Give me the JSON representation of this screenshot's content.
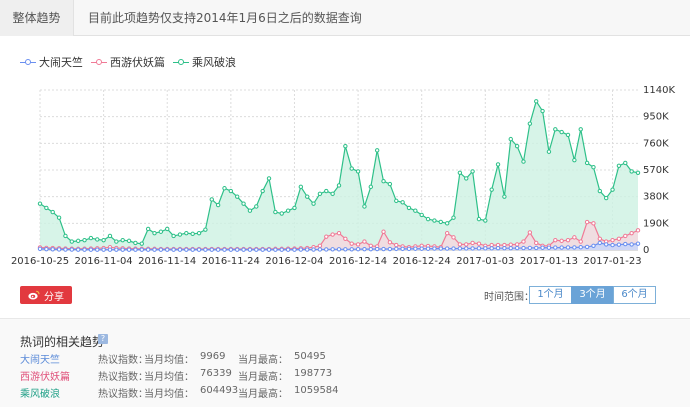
{
  "header": {
    "tab": "整体趋势",
    "notice": "目前此项趋势仅支持2014年1月6日之后的数据查询"
  },
  "colors": {
    "series1": "#6a8ff0",
    "series2": "#f07a96",
    "series3": "#2ec089",
    "area1": "#c7d6fb",
    "area2": "#f6d7de",
    "area3": "#cdf1e2"
  },
  "chart_data": {
    "type": "area",
    "y_axis_side": "right",
    "ylim": [
      0,
      1140000
    ],
    "y_ticks": [
      "0",
      "190K",
      "380K",
      "570K",
      "760K",
      "950K",
      "1140K"
    ],
    "x_ticks": [
      "2016-10-25",
      "2016-11-04",
      "2016-11-14",
      "2016-11-24",
      "2016-12-04",
      "2016-12-14",
      "2016-12-24",
      "2017-01-03",
      "2017-01-13",
      "2017-01-23"
    ],
    "grid": true,
    "legend": "top-left",
    "series": [
      {
        "name": "大闹天竺",
        "values": [
          8000,
          6000,
          5000,
          4000,
          3000,
          3000,
          2500,
          2000,
          2000,
          2000,
          2000,
          2000,
          2000,
          2000,
          2000,
          2000,
          2000,
          2000,
          2000,
          2000,
          2000,
          2000,
          2000,
          2000,
          2000,
          2000,
          2000,
          2000,
          2000,
          2000,
          2000,
          2000,
          2000,
          2000,
          2000,
          2000,
          2000,
          2000,
          2000,
          2000,
          2000,
          3000,
          3000,
          3000,
          4000,
          4000,
          5000,
          5000,
          5000,
          5000,
          6000,
          6000,
          6000,
          7000,
          7000,
          7000,
          8000,
          8000,
          8000,
          9000,
          9000,
          9000,
          10000,
          10000,
          10000,
          10000,
          11000,
          11000,
          11000,
          12000,
          12000,
          12000,
          13000,
          13000,
          13000,
          14000,
          14000,
          15000,
          15000,
          16000,
          16000,
          17000,
          17000,
          18000,
          18000,
          20000,
          22000,
          30000,
          50495,
          40000,
          35000,
          38000,
          42000,
          40000,
          45000
        ]
      },
      {
        "name": "西游伏妖篇",
        "values": [
          18000,
          15000,
          14000,
          12000,
          10000,
          9000,
          8000,
          9000,
          10000,
          12000,
          14000,
          20000,
          14000,
          12000,
          10000,
          9000,
          8000,
          8000,
          8000,
          7000,
          7000,
          7000,
          7000,
          7000,
          7000,
          7000,
          7000,
          7000,
          7000,
          7000,
          7000,
          7000,
          7000,
          7000,
          7000,
          7000,
          7000,
          8000,
          8000,
          9000,
          10000,
          12000,
          14000,
          20000,
          30000,
          95000,
          110000,
          120000,
          80000,
          45000,
          40000,
          60000,
          30000,
          25000,
          130000,
          55000,
          35000,
          25000,
          20000,
          25000,
          30000,
          28000,
          25000,
          20000,
          120000,
          90000,
          40000,
          40000,
          50000,
          45000,
          30000,
          35000,
          35000,
          35000,
          38000,
          40000,
          60000,
          125000,
          50000,
          30000,
          30000,
          70000,
          65000,
          70000,
          90000,
          60000,
          198773,
          190000,
          80000,
          60000,
          70000,
          80000,
          100000,
          120000,
          140000
        ]
      },
      {
        "name": "乘风破浪",
        "values": [
          330000,
          300000,
          270000,
          230000,
          100000,
          60000,
          65000,
          70000,
          85000,
          75000,
          70000,
          100000,
          60000,
          70000,
          65000,
          50000,
          45000,
          150000,
          120000,
          130000,
          150000,
          100000,
          110000,
          120000,
          115000,
          120000,
          145000,
          360000,
          320000,
          440000,
          420000,
          380000,
          330000,
          280000,
          310000,
          420000,
          510000,
          270000,
          260000,
          280000,
          300000,
          450000,
          380000,
          330000,
          400000,
          420000,
          400000,
          460000,
          740000,
          580000,
          560000,
          310000,
          450000,
          710000,
          490000,
          470000,
          350000,
          340000,
          300000,
          280000,
          250000,
          220000,
          210000,
          200000,
          190000,
          230000,
          550000,
          510000,
          560000,
          220000,
          210000,
          430000,
          610000,
          380000,
          790000,
          740000,
          630000,
          900000,
          1059584,
          990000,
          700000,
          860000,
          840000,
          820000,
          640000,
          860000,
          620000,
          590000,
          420000,
          370000,
          430000,
          600000,
          620000,
          560000,
          550000
        ]
      }
    ]
  },
  "controls": {
    "share_label": "分享",
    "range_label": "时间范围：",
    "ranges": [
      "1个月",
      "3个月",
      "6个月"
    ],
    "active_range": "3个月"
  },
  "related": {
    "title": "热词的相关趋势",
    "rows": [
      {
        "term": "大闹天竺",
        "index_label": "热议指数：",
        "avg_label": "当月均值：",
        "avg": "9969",
        "max_label": "当月最高：",
        "max": "50495",
        "color": "#5a8ad8"
      },
      {
        "term": "西游伏妖篇",
        "index_label": "热议指数：",
        "avg_label": "当月均值：",
        "avg": "76339",
        "max_label": "当月最高：",
        "max": "198773",
        "color": "#e0507a"
      },
      {
        "term": "乘风破浪",
        "index_label": "热议指数：",
        "avg_label": "当月均值：",
        "avg": "604493",
        "max_label": "当月最高：",
        "max": "1059584",
        "color": "#1f9f86"
      }
    ]
  }
}
